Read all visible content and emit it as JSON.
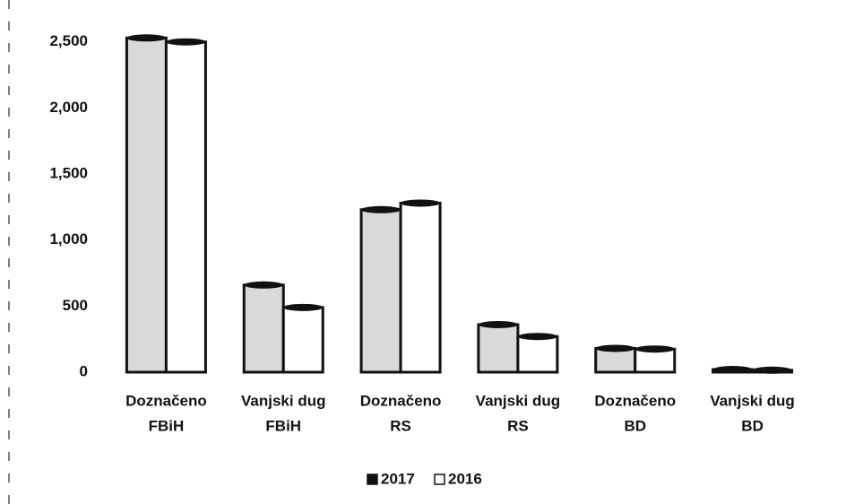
{
  "chart_data": {
    "type": "bar",
    "categories": [
      [
        "Doznačeno",
        "FBiH"
      ],
      [
        "Vanjski dug",
        "FBiH"
      ],
      [
        "Doznačeno",
        "RS"
      ],
      [
        "Vanjski dug",
        "RS"
      ],
      [
        "Doznačeno",
        "BD"
      ],
      [
        "Vanjski dug",
        "BD"
      ]
    ],
    "series": [
      {
        "name": "2017",
        "color": "#d9d9d9",
        "values": [
          2530,
          660,
          1230,
          360,
          180,
          20
        ]
      },
      {
        "name": "2016",
        "color": "#ffffff",
        "values": [
          2500,
          490,
          1280,
          270,
          175,
          15
        ]
      }
    ],
    "ylim": [
      0,
      2600
    ],
    "yticks": [
      0,
      500,
      {
        "value": 1000,
        "label": "1,000"
      },
      {
        "value": 1500,
        "label": "1,500"
      },
      {
        "value": 2000,
        "label": "2,000"
      },
      {
        "value": 2500,
        "label": "2,500"
      }
    ],
    "grid": false,
    "legend": "bottom"
  }
}
